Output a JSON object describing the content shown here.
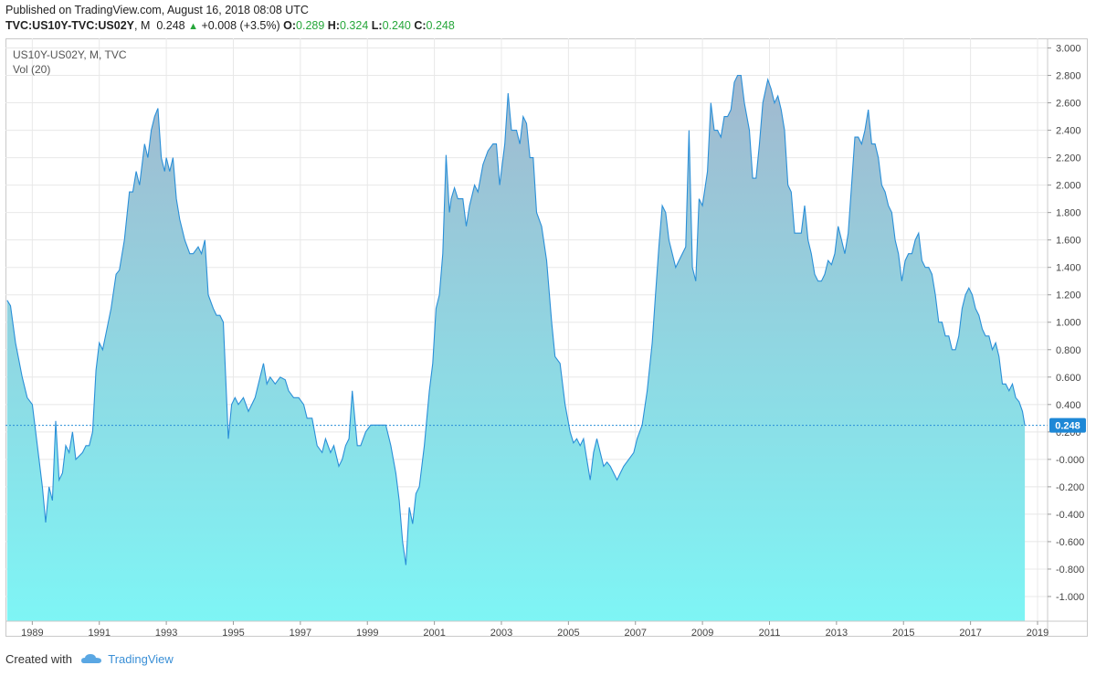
{
  "header": {
    "published": "Published on TradingView.com, August 16, 2018 08:08 UTC",
    "symbol": "TVC:US10Y-TVC:US02Y",
    "interval": "M",
    "last": "0.248",
    "change": "+0.008 (+3.5%)",
    "o_label": "O:",
    "o_value": "0.289",
    "h_label": "H:",
    "h_value": "0.324",
    "l_label": "L:",
    "l_value": "0.240",
    "c_label": "C:",
    "c_value": "0.248"
  },
  "legend": {
    "line1": "US10Y-US02Y, M, TVC",
    "line2": "Vol (20)"
  },
  "footer": {
    "created_with": "Created with",
    "brand": "TradingView"
  },
  "colors": {
    "line": "#2a8fd8",
    "fill_top": "#a4b4cc",
    "fill_bottom": "#7ef5f5",
    "badge": "#1e88d6",
    "up": "#26a63a",
    "grid": "#e8e8e8"
  },
  "chart_data": {
    "type": "area",
    "title": "US10Y-US02Y, M, TVC",
    "xlabel": "",
    "ylabel": "",
    "ylim": [
      -1.18,
      3.07
    ],
    "xlim": [
      1988.2,
      2019.3
    ],
    "grid": true,
    "x_ticks": [
      "1989",
      "1991",
      "1993",
      "1995",
      "1997",
      "1999",
      "2001",
      "2003",
      "2005",
      "2007",
      "2009",
      "2011",
      "2013",
      "2015",
      "2017",
      "2019"
    ],
    "y_ticks": [
      "3.000",
      "2.800",
      "2.600",
      "2.400",
      "2.200",
      "2.000",
      "1.800",
      "1.600",
      "1.400",
      "1.200",
      "1.000",
      "0.800",
      "0.600",
      "0.400",
      "0.200",
      "-0.000",
      "-0.200",
      "-0.400",
      "-0.600",
      "-0.800",
      "-1.000"
    ],
    "last_value_label": "0.248",
    "last_value": 0.248,
    "points": [
      [
        1988.25,
        1.16
      ],
      [
        1988.35,
        1.12
      ],
      [
        1988.5,
        0.85
      ],
      [
        1988.7,
        0.6
      ],
      [
        1988.85,
        0.45
      ],
      [
        1989.0,
        0.4
      ],
      [
        1989.15,
        0.1
      ],
      [
        1989.3,
        -0.2
      ],
      [
        1989.4,
        -0.46
      ],
      [
        1989.5,
        -0.2
      ],
      [
        1989.6,
        -0.3
      ],
      [
        1989.7,
        0.28
      ],
      [
        1989.8,
        -0.15
      ],
      [
        1989.9,
        -0.1
      ],
      [
        1990.0,
        0.1
      ],
      [
        1990.1,
        0.05
      ],
      [
        1990.2,
        0.2
      ],
      [
        1990.3,
        0.0
      ],
      [
        1990.5,
        0.05
      ],
      [
        1990.6,
        0.1
      ],
      [
        1990.7,
        0.1
      ],
      [
        1990.8,
        0.2
      ],
      [
        1990.9,
        0.65
      ],
      [
        1991.0,
        0.85
      ],
      [
        1991.1,
        0.8
      ],
      [
        1991.2,
        0.92
      ],
      [
        1991.35,
        1.1
      ],
      [
        1991.5,
        1.35
      ],
      [
        1991.6,
        1.38
      ],
      [
        1991.75,
        1.6
      ],
      [
        1991.9,
        1.95
      ],
      [
        1992.0,
        1.95
      ],
      [
        1992.1,
        2.1
      ],
      [
        1992.2,
        2.0
      ],
      [
        1992.35,
        2.3
      ],
      [
        1992.45,
        2.2
      ],
      [
        1992.55,
        2.4
      ],
      [
        1992.65,
        2.5
      ],
      [
        1992.75,
        2.56
      ],
      [
        1992.85,
        2.2
      ],
      [
        1992.95,
        2.1
      ],
      [
        1993.0,
        2.2
      ],
      [
        1993.1,
        2.1
      ],
      [
        1993.2,
        2.2
      ],
      [
        1993.3,
        1.9
      ],
      [
        1993.4,
        1.75
      ],
      [
        1993.55,
        1.6
      ],
      [
        1993.7,
        1.5
      ],
      [
        1993.8,
        1.5
      ],
      [
        1993.95,
        1.55
      ],
      [
        1994.05,
        1.5
      ],
      [
        1994.15,
        1.6
      ],
      [
        1994.25,
        1.2
      ],
      [
        1994.4,
        1.1
      ],
      [
        1994.5,
        1.05
      ],
      [
        1994.6,
        1.05
      ],
      [
        1994.7,
        1.0
      ],
      [
        1994.85,
        0.15
      ],
      [
        1994.95,
        0.4
      ],
      [
        1995.05,
        0.45
      ],
      [
        1995.15,
        0.4
      ],
      [
        1995.3,
        0.45
      ],
      [
        1995.45,
        0.35
      ],
      [
        1995.55,
        0.4
      ],
      [
        1995.65,
        0.45
      ],
      [
        1995.8,
        0.6
      ],
      [
        1995.9,
        0.7
      ],
      [
        1996.0,
        0.55
      ],
      [
        1996.1,
        0.6
      ],
      [
        1996.25,
        0.55
      ],
      [
        1996.4,
        0.6
      ],
      [
        1996.55,
        0.58
      ],
      [
        1996.65,
        0.5
      ],
      [
        1996.8,
        0.45
      ],
      [
        1996.95,
        0.45
      ],
      [
        1997.1,
        0.4
      ],
      [
        1997.2,
        0.3
      ],
      [
        1997.35,
        0.3
      ],
      [
        1997.5,
        0.1
      ],
      [
        1997.65,
        0.05
      ],
      [
        1997.75,
        0.15
      ],
      [
        1997.9,
        0.05
      ],
      [
        1998.0,
        0.1
      ],
      [
        1998.15,
        -0.05
      ],
      [
        1998.25,
        0.0
      ],
      [
        1998.35,
        0.1
      ],
      [
        1998.45,
        0.15
      ],
      [
        1998.55,
        0.5
      ],
      [
        1998.7,
        0.1
      ],
      [
        1998.8,
        0.1
      ],
      [
        1998.95,
        0.2
      ],
      [
        1999.1,
        0.25
      ],
      [
        1999.25,
        0.25
      ],
      [
        1999.4,
        0.25
      ],
      [
        1999.55,
        0.25
      ],
      [
        1999.7,
        0.1
      ],
      [
        1999.85,
        -0.1
      ],
      [
        1999.95,
        -0.3
      ],
      [
        2000.05,
        -0.6
      ],
      [
        2000.15,
        -0.77
      ],
      [
        2000.25,
        -0.35
      ],
      [
        2000.35,
        -0.47
      ],
      [
        2000.45,
        -0.25
      ],
      [
        2000.55,
        -0.2
      ],
      [
        2000.7,
        0.1
      ],
      [
        2000.85,
        0.5
      ],
      [
        2000.95,
        0.7
      ],
      [
        2001.05,
        1.1
      ],
      [
        2001.15,
        1.2
      ],
      [
        2001.25,
        1.5
      ],
      [
        2001.35,
        2.22
      ],
      [
        2001.45,
        1.8
      ],
      [
        2001.5,
        1.9
      ],
      [
        2001.6,
        1.98
      ],
      [
        2001.7,
        1.9
      ],
      [
        2001.85,
        1.9
      ],
      [
        2001.95,
        1.7
      ],
      [
        2002.05,
        1.85
      ],
      [
        2002.2,
        2.0
      ],
      [
        2002.3,
        1.95
      ],
      [
        2002.45,
        2.15
      ],
      [
        2002.6,
        2.25
      ],
      [
        2002.75,
        2.3
      ],
      [
        2002.85,
        2.3
      ],
      [
        2002.95,
        2.0
      ],
      [
        2003.1,
        2.3
      ],
      [
        2003.2,
        2.67
      ],
      [
        2003.3,
        2.4
      ],
      [
        2003.45,
        2.4
      ],
      [
        2003.55,
        2.3
      ],
      [
        2003.65,
        2.5
      ],
      [
        2003.75,
        2.45
      ],
      [
        2003.85,
        2.2
      ],
      [
        2003.95,
        2.2
      ],
      [
        2004.05,
        1.8
      ],
      [
        2004.2,
        1.7
      ],
      [
        2004.35,
        1.45
      ],
      [
        2004.5,
        1.0
      ],
      [
        2004.6,
        0.75
      ],
      [
        2004.75,
        0.7
      ],
      [
        2004.9,
        0.4
      ],
      [
        2005.05,
        0.2
      ],
      [
        2005.15,
        0.12
      ],
      [
        2005.25,
        0.15
      ],
      [
        2005.35,
        0.1
      ],
      [
        2005.45,
        0.15
      ],
      [
        2005.55,
        0.0
      ],
      [
        2005.65,
        -0.15
      ],
      [
        2005.75,
        0.05
      ],
      [
        2005.85,
        0.15
      ],
      [
        2005.95,
        0.05
      ],
      [
        2006.05,
        -0.05
      ],
      [
        2006.15,
        -0.02
      ],
      [
        2006.25,
        -0.05
      ],
      [
        2006.35,
        -0.1
      ],
      [
        2006.45,
        -0.15
      ],
      [
        2006.55,
        -0.1
      ],
      [
        2006.65,
        -0.05
      ],
      [
        2006.8,
        0.0
      ],
      [
        2006.95,
        0.05
      ],
      [
        2007.05,
        0.15
      ],
      [
        2007.2,
        0.25
      ],
      [
        2007.35,
        0.5
      ],
      [
        2007.5,
        0.85
      ],
      [
        2007.6,
        1.2
      ],
      [
        2007.7,
        1.55
      ],
      [
        2007.8,
        1.85
      ],
      [
        2007.9,
        1.8
      ],
      [
        2008.0,
        1.6
      ],
      [
        2008.1,
        1.5
      ],
      [
        2008.2,
        1.4
      ],
      [
        2008.3,
        1.45
      ],
      [
        2008.4,
        1.5
      ],
      [
        2008.5,
        1.55
      ],
      [
        2008.6,
        2.4
      ],
      [
        2008.7,
        1.4
      ],
      [
        2008.8,
        1.3
      ],
      [
        2008.9,
        1.9
      ],
      [
        2009.0,
        1.85
      ],
      [
        2009.15,
        2.1
      ],
      [
        2009.25,
        2.6
      ],
      [
        2009.35,
        2.4
      ],
      [
        2009.45,
        2.4
      ],
      [
        2009.55,
        2.35
      ],
      [
        2009.65,
        2.5
      ],
      [
        2009.75,
        2.5
      ],
      [
        2009.85,
        2.55
      ],
      [
        2009.95,
        2.75
      ],
      [
        2010.05,
        2.8
      ],
      [
        2010.15,
        2.8
      ],
      [
        2010.25,
        2.6
      ],
      [
        2010.4,
        2.4
      ],
      [
        2010.5,
        2.05
      ],
      [
        2010.6,
        2.05
      ],
      [
        2010.7,
        2.3
      ],
      [
        2010.8,
        2.6
      ],
      [
        2010.95,
        2.77
      ],
      [
        2011.05,
        2.7
      ],
      [
        2011.15,
        2.6
      ],
      [
        2011.25,
        2.65
      ],
      [
        2011.35,
        2.55
      ],
      [
        2011.45,
        2.4
      ],
      [
        2011.55,
        2.0
      ],
      [
        2011.65,
        1.95
      ],
      [
        2011.75,
        1.65
      ],
      [
        2011.85,
        1.65
      ],
      [
        2011.95,
        1.65
      ],
      [
        2012.05,
        1.85
      ],
      [
        2012.15,
        1.6
      ],
      [
        2012.25,
        1.5
      ],
      [
        2012.35,
        1.35
      ],
      [
        2012.45,
        1.3
      ],
      [
        2012.55,
        1.3
      ],
      [
        2012.65,
        1.35
      ],
      [
        2012.75,
        1.45
      ],
      [
        2012.85,
        1.42
      ],
      [
        2012.95,
        1.5
      ],
      [
        2013.05,
        1.7
      ],
      [
        2013.15,
        1.6
      ],
      [
        2013.25,
        1.5
      ],
      [
        2013.35,
        1.65
      ],
      [
        2013.45,
        2.0
      ],
      [
        2013.55,
        2.35
      ],
      [
        2013.65,
        2.35
      ],
      [
        2013.75,
        2.3
      ],
      [
        2013.85,
        2.4
      ],
      [
        2013.95,
        2.55
      ],
      [
        2014.05,
        2.3
      ],
      [
        2014.15,
        2.3
      ],
      [
        2014.25,
        2.2
      ],
      [
        2014.35,
        2.0
      ],
      [
        2014.45,
        1.95
      ],
      [
        2014.55,
        1.85
      ],
      [
        2014.65,
        1.8
      ],
      [
        2014.75,
        1.6
      ],
      [
        2014.85,
        1.5
      ],
      [
        2014.95,
        1.3
      ],
      [
        2015.05,
        1.45
      ],
      [
        2015.15,
        1.5
      ],
      [
        2015.25,
        1.5
      ],
      [
        2015.35,
        1.6
      ],
      [
        2015.45,
        1.65
      ],
      [
        2015.55,
        1.45
      ],
      [
        2015.65,
        1.4
      ],
      [
        2015.75,
        1.4
      ],
      [
        2015.85,
        1.35
      ],
      [
        2015.95,
        1.2
      ],
      [
        2016.05,
        1.0
      ],
      [
        2016.15,
        1.0
      ],
      [
        2016.25,
        0.9
      ],
      [
        2016.35,
        0.9
      ],
      [
        2016.45,
        0.8
      ],
      [
        2016.55,
        0.8
      ],
      [
        2016.65,
        0.9
      ],
      [
        2016.75,
        1.1
      ],
      [
        2016.85,
        1.2
      ],
      [
        2016.95,
        1.25
      ],
      [
        2017.05,
        1.2
      ],
      [
        2017.15,
        1.1
      ],
      [
        2017.25,
        1.05
      ],
      [
        2017.35,
        0.95
      ],
      [
        2017.45,
        0.9
      ],
      [
        2017.55,
        0.9
      ],
      [
        2017.65,
        0.8
      ],
      [
        2017.75,
        0.85
      ],
      [
        2017.85,
        0.75
      ],
      [
        2017.95,
        0.55
      ],
      [
        2018.05,
        0.55
      ],
      [
        2018.15,
        0.5
      ],
      [
        2018.25,
        0.55
      ],
      [
        2018.35,
        0.45
      ],
      [
        2018.45,
        0.42
      ],
      [
        2018.55,
        0.35
      ],
      [
        2018.62,
        0.248
      ]
    ]
  }
}
